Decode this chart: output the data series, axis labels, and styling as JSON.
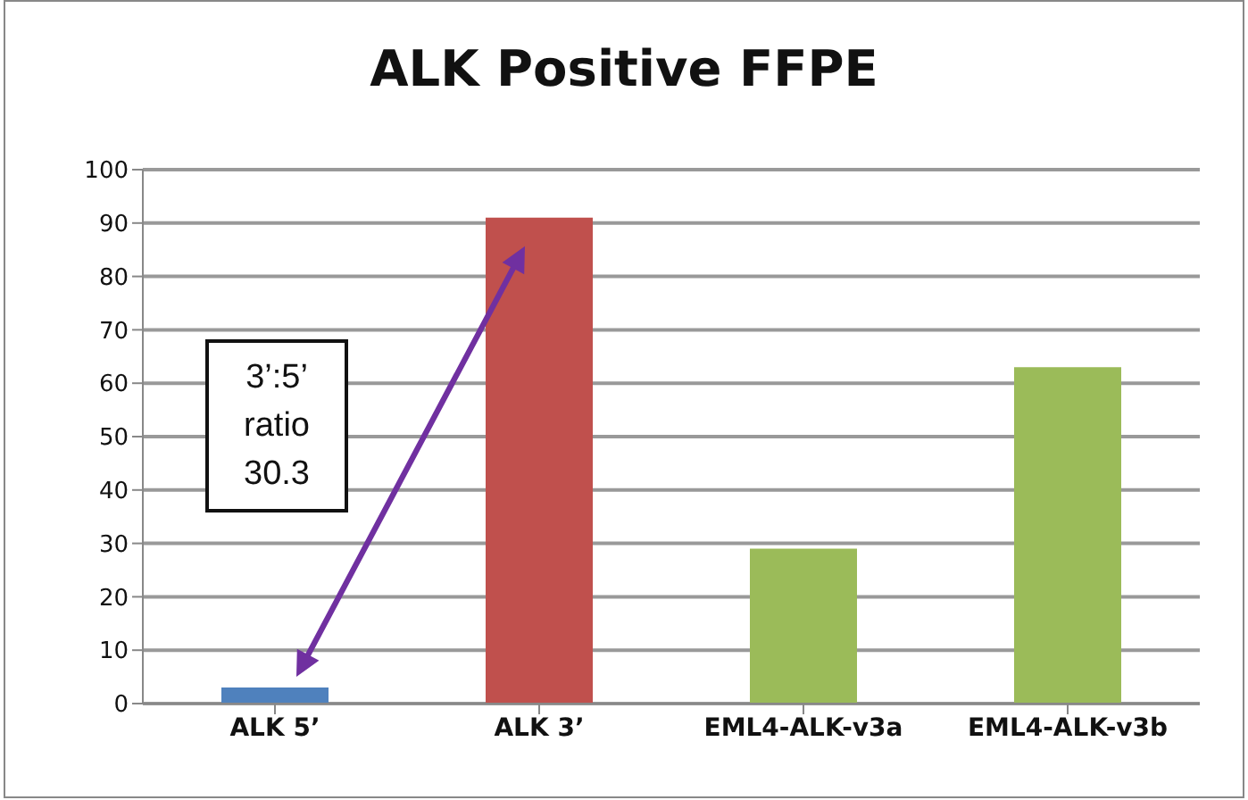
{
  "chart_data": {
    "type": "bar",
    "title": "ALK Positive FFPE",
    "categories": [
      "ALK 5’",
      "ALK 3’",
      "EML4-ALK-v3a",
      "EML4-ALK-v3b"
    ],
    "values": [
      3,
      91,
      29,
      63
    ],
    "colors": [
      "#4f81bd",
      "#c0504d",
      "#9bbb59",
      "#9bbb59"
    ],
    "ylim": [
      0,
      100
    ],
    "yticks": [
      0,
      10,
      20,
      30,
      40,
      50,
      60,
      70,
      80,
      90,
      100
    ],
    "grid": "y",
    "annotations": [
      "3’:5’ ratio 30.3"
    ]
  }
}
